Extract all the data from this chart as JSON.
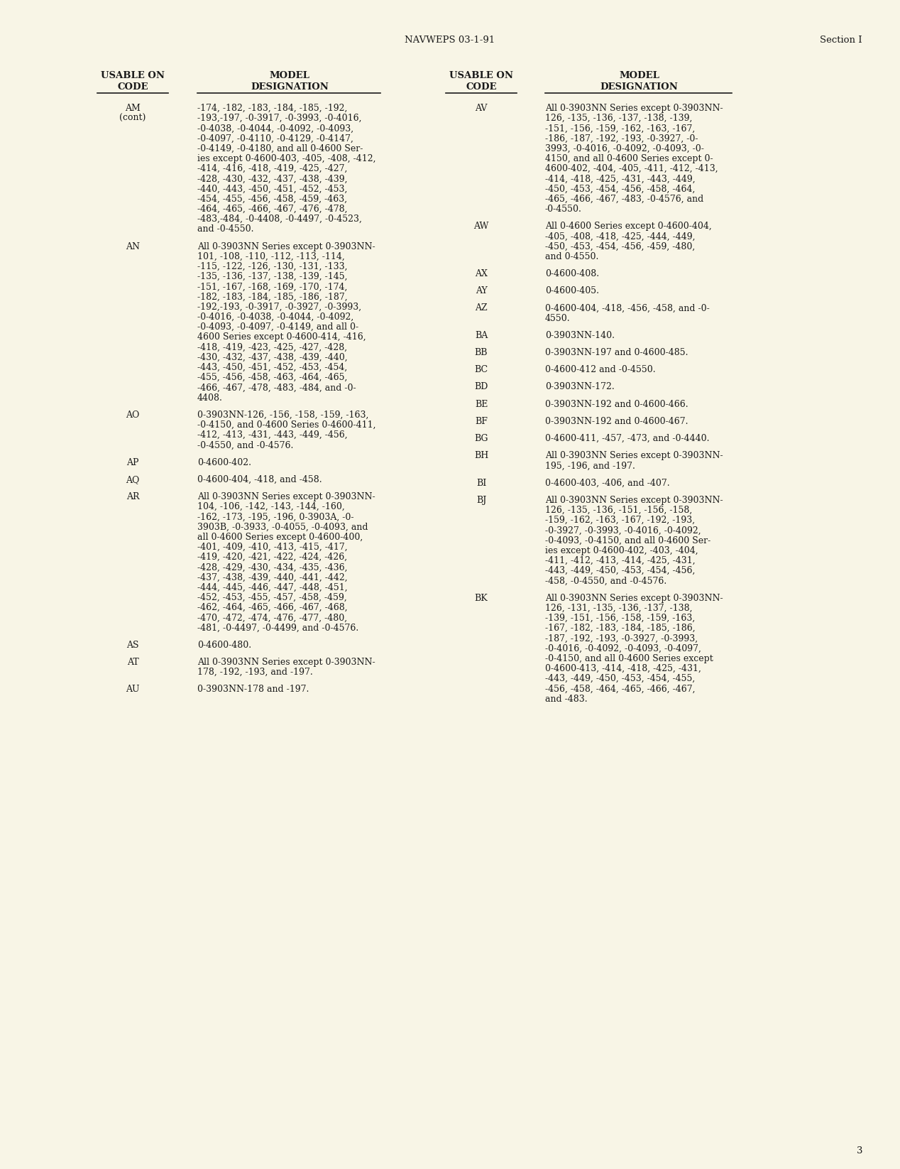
{
  "bg_color": "#f8f5e6",
  "text_color": "#1a1a1a",
  "header_center": "NAVWEPS 03-1-91",
  "header_right": "Section I",
  "page_number": "3",
  "left_entries": [
    {
      "code": "AM\n(cont)",
      "designation": "-174, -182, -183, -184, -185, -192,\n-193,-197, -0-3917, -0-3993, -0-4016,\n-0-4038, -0-4044, -0-4092, -0-4093,\n-0-4097, -0-4110, -0-4129, -0-4147,\n-0-4149, -0-4180, and all 0-4600 Ser-\nies except 0-4600-403, -405, -408, -412,\n-414, -416, -418, -419, -425, -427,\n-428, -430, -432, -437, -438, -439,\n-440, -443, -450, -451, -452, -453,\n-454, -455, -456, -458, -459, -463,\n-464, -465, -466, -467, -476, -478,\n-483,-484, -0-4408, -0-4497, -0-4523,\nand -0-4550."
    },
    {
      "code": "AN",
      "designation": "All 0-3903NN Series except 0-3903NN-\n101, -108, -110, -112, -113, -114,\n-115, -122, -126, -130, -131, -133,\n-135, -136, -137, -138, -139, -145,\n-151, -167, -168, -169, -170, -174,\n-182, -183, -184, -185, -186, -187,\n-192,-193, -0-3917, -0-3927, -0-3993,\n-0-4016, -0-4038, -0-4044, -0-4092,\n-0-4093, -0-4097, -0-4149, and all 0-\n4600 Series except 0-4600-414, -416,\n-418, -419, -423, -425, -427, -428,\n-430, -432, -437, -438, -439, -440,\n-443, -450, -451, -452, -453, -454,\n-455, -456, -458, -463, -464, -465,\n-466, -467, -478, -483, -484, and -0-\n4408."
    },
    {
      "code": "AO",
      "designation": "0-3903NN-126, -156, -158, -159, -163,\n-0-4150, and 0-4600 Series 0-4600-411,\n-412, -413, -431, -443, -449, -456,\n-0-4550, and -0-4576."
    },
    {
      "code": "AP",
      "designation": "0-4600-402."
    },
    {
      "code": "AQ",
      "designation": "0-4600-404, -418, and -458."
    },
    {
      "code": "AR",
      "designation": "All 0-3903NN Series except 0-3903NN-\n104, -106, -142, -143, -144, -160,\n-162, -173, -195, -196, 0-3903A, -0-\n3903B, -0-3933, -0-4055, -0-4093, and\nall 0-4600 Series except 0-4600-400,\n-401, -409, -410, -413, -415, -417,\n-419, -420, -421, -422, -424, -426,\n-428, -429, -430, -434, -435, -436,\n-437, -438, -439, -440, -441, -442,\n-444, -445, -446, -447, -448, -451,\n-452, -453, -455, -457, -458, -459,\n-462, -464, -465, -466, -467, -468,\n-470, -472, -474, -476, -477, -480,\n-481, -0-4497, -0-4499, and -0-4576."
    },
    {
      "code": "AS",
      "designation": "0-4600-480."
    },
    {
      "code": "AT",
      "designation": "All 0-3903NN Series except 0-3903NN-\n178, -192, -193, and -197."
    },
    {
      "code": "AU",
      "designation": "0-3903NN-178 and -197."
    }
  ],
  "right_entries": [
    {
      "code": "AV",
      "designation": "All 0-3903NN Series except 0-3903NN-\n126, -135, -136, -137, -138, -139,\n-151, -156, -159, -162, -163, -167,\n-186, -187, -192, -193, -0-3927, -0-\n3993, -0-4016, -0-4092, -0-4093, -0-\n4150, and all 0-4600 Series except 0-\n4600-402, -404, -405, -411, -412, -413,\n-414, -418, -425, -431, -443, -449,\n-450, -453, -454, -456, -458, -464,\n-465, -466, -467, -483, -0-4576, and\n-0-4550."
    },
    {
      "code": "AW",
      "designation": "All 0-4600 Series except 0-4600-404,\n-405, -408, -418, -425, -444, -449,\n-450, -453, -454, -456, -459, -480,\nand 0-4550."
    },
    {
      "code": "AX",
      "designation": "0-4600-408."
    },
    {
      "code": "AY",
      "designation": "0-4600-405."
    },
    {
      "code": "AZ",
      "designation": "0-4600-404, -418, -456, -458, and -0-\n4550."
    },
    {
      "code": "BA",
      "designation": "0-3903NN-140."
    },
    {
      "code": "BB",
      "designation": "0-3903NN-197 and 0-4600-485."
    },
    {
      "code": "BC",
      "designation": "0-4600-412 and -0-4550."
    },
    {
      "code": "BD",
      "designation": "0-3903NN-172."
    },
    {
      "code": "BE",
      "designation": "0-3903NN-192 and 0-4600-466."
    },
    {
      "code": "BF",
      "designation": "0-3903NN-192 and 0-4600-467."
    },
    {
      "code": "BG",
      "designation": "0-4600-411, -457, -473, and -0-4440."
    },
    {
      "code": "BH",
      "designation": "All 0-3903NN Series except 0-3903NN-\n195, -196, and -197."
    },
    {
      "code": "BI",
      "designation": "0-4600-403, -406, and -407."
    },
    {
      "code": "BJ",
      "designation": "All 0-3903NN Series except 0-3903NN-\n126, -135, -136, -151, -156, -158,\n-159, -162, -163, -167, -192, -193,\n-0-3927, -0-3993, -0-4016, -0-4092,\n-0-4093, -0-4150, and all 0-4600 Ser-\nies except 0-4600-402, -403, -404,\n-411, -412, -413, -414, -425, -431,\n-443, -449, -450, -453, -454, -456,\n-458, -0-4550, and -0-4576."
    },
    {
      "code": "BK",
      "designation": "All 0-3903NN Series except 0-3903NN-\n126, -131, -135, -136, -137, -138,\n-139, -151, -156, -158, -159, -163,\n-167, -182, -183, -184, -185, -186,\n-187, -192, -193, -0-3927, -0-3993,\n-0-4016, -0-4092, -0-4093, -0-4097,\n-0-4150, and all 0-4600 Series except\n0-4600-413, -414, -418, -425, -431,\n-443, -449, -450, -453, -454, -455,\n-456, -458, -464, -465, -466, -467,\nand -483."
    }
  ]
}
